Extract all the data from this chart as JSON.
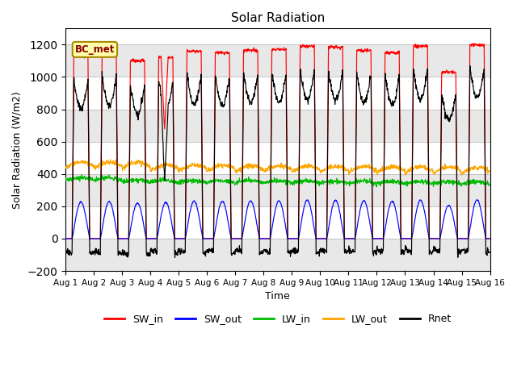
{
  "title": "Solar Radiation",
  "xlabel": "Time",
  "ylabel": "Solar Radiation (W/m2)",
  "ylim": [
    -200,
    1300
  ],
  "yticks": [
    -200,
    0,
    200,
    400,
    600,
    800,
    1000,
    1200
  ],
  "annotation_text": "BC_met",
  "colors": {
    "SW_in": "#ff0000",
    "SW_out": "#0000ff",
    "LW_in": "#00bb00",
    "LW_out": "#ffa500",
    "Rnet": "#000000"
  },
  "n_days": 15,
  "dt_hours": 0.25,
  "sunrise_hour": 5.5,
  "sunset_hour": 20.5,
  "peak_SW": [
    1130,
    1150,
    1100,
    1120,
    1160,
    1150,
    1165,
    1170,
    1190,
    1185,
    1165,
    1150,
    1190,
    1030,
    1200
  ],
  "band_colors": [
    "#e8e8e8",
    "#ffffff"
  ],
  "band_edges": [
    -200,
    0,
    200,
    400,
    600,
    800,
    1000,
    1200,
    1300
  ]
}
